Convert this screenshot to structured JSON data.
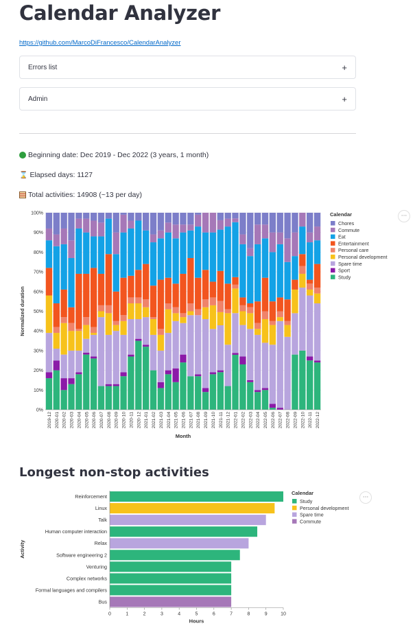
{
  "title": "Calendar Analyzer",
  "repo_link": "https://github.com/MarcoDiFrancesco/CalendarAnalyzer",
  "expanders": [
    {
      "label": "Errors list",
      "icon": "plus-icon"
    },
    {
      "label": "Admin",
      "icon": "plus-icon"
    }
  ],
  "stats": {
    "beginning": "Beginning date: Dec 2019 - Dec 2022 (3 years, 1 month)",
    "elapsed": "Elapsed days: 1127",
    "total": "Total activities: 14908 (~13 per day)",
    "beginning_icon": "green-circle-icon",
    "elapsed_icon": "hourglass-icon",
    "total_icon": "abacus-icon"
  },
  "colors": {
    "Chores": "#7c7ec9",
    "Commute": "#a678b8",
    "Eat": "#13a2e6",
    "Entertainment": "#f2551f",
    "Personal care": "#f0836a",
    "Personal development": "#f7c21b",
    "Spare time": "#b8a5de",
    "Sport": "#8b1aa8",
    "Study": "#2db57c"
  },
  "chart_data": [
    {
      "type": "bar",
      "stacked": "normalized",
      "xlabel": "Month",
      "ylabel": "Normalized duration",
      "legend_title": "Calendar",
      "legend_position": "right",
      "y_ticks": [
        "0%",
        "10%",
        "20%",
        "30%",
        "40%",
        "50%",
        "60%",
        "70%",
        "80%",
        "90%",
        "100%"
      ],
      "categories": [
        "2019-12",
        "2020-01",
        "2020-02",
        "2020-03",
        "2020-04",
        "2020-05",
        "2020-06",
        "2020-07",
        "2020-08",
        "2020-09",
        "2020-10",
        "2020-11",
        "2020-12",
        "2021-01",
        "2021-02",
        "2021-03",
        "2021-04",
        "2021-05",
        "2021-06",
        "2021-07",
        "2021-08",
        "2021-09",
        "2021-10",
        "2021-11",
        "2021-12",
        "2022-01",
        "2022-02",
        "2022-03",
        "2022-04",
        "2022-05",
        "2022-06",
        "2022-07",
        "2022-08",
        "2022-09",
        "2022-10",
        "2022-11",
        "2022-12"
      ],
      "series_order": [
        "Study",
        "Sport",
        "Spare time",
        "Personal development",
        "Personal care",
        "Entertainment",
        "Eat",
        "Commute",
        "Chores"
      ],
      "legend": [
        "Chores",
        "Commute",
        "Eat",
        "Entertainment",
        "Personal care",
        "Personal development",
        "Spare time",
        "Sport",
        "Study"
      ],
      "series": [
        {
          "name": "Study",
          "values": [
            16,
            20,
            10,
            13,
            18,
            28,
            26,
            12,
            12,
            12,
            17,
            27,
            35,
            32,
            20,
            11,
            18,
            14,
            24,
            17,
            17,
            9,
            18,
            20,
            12,
            29,
            23,
            14,
            9,
            10,
            1,
            0,
            0,
            28,
            30,
            25,
            24
          ]
        },
        {
          "name": "Sport",
          "values": [
            3,
            5,
            6,
            3,
            1,
            1,
            1,
            0,
            1,
            1,
            2,
            1,
            1,
            1,
            0,
            3,
            2,
            7,
            4,
            0,
            1,
            2,
            1,
            1,
            0,
            1,
            4,
            1,
            1,
            1,
            2,
            1,
            0,
            0,
            0,
            2,
            1
          ]
        },
        {
          "name": "Spare time",
          "values": [
            20,
            6,
            12,
            14,
            11,
            7,
            11,
            35,
            25,
            27,
            19,
            18,
            10,
            14,
            18,
            16,
            19,
            24,
            16,
            31,
            30,
            35,
            22,
            24,
            21,
            21,
            16,
            26,
            28,
            23,
            30,
            44,
            37,
            21,
            32,
            31,
            29
          ]
        },
        {
          "name": "Personal development",
          "values": [
            19,
            8,
            16,
            10,
            10,
            7,
            1,
            3,
            11,
            3,
            7,
            8,
            8,
            5,
            8,
            8,
            12,
            4,
            3,
            2,
            0,
            6,
            12,
            7,
            16,
            13,
            7,
            8,
            3,
            12,
            10,
            2,
            6,
            12,
            7,
            3,
            5
          ]
        },
        {
          "name": "Personal care",
          "values": [
            0,
            3,
            3,
            4,
            1,
            4,
            3,
            3,
            4,
            2,
            3,
            3,
            3,
            4,
            1,
            3,
            3,
            3,
            2,
            4,
            3,
            4,
            4,
            6,
            2,
            2,
            3,
            3,
            3,
            4,
            2,
            3,
            2,
            0,
            4,
            3,
            3
          ]
        },
        {
          "name": "Entertainment",
          "values": [
            14,
            12,
            14,
            8,
            28,
            22,
            30,
            16,
            26,
            15,
            19,
            11,
            14,
            18,
            16,
            25,
            13,
            12,
            20,
            23,
            16,
            15,
            8,
            16,
            13,
            4,
            4,
            2,
            11,
            17,
            10,
            7,
            11,
            5,
            6,
            2,
            12
          ]
        },
        {
          "name": "Eat",
          "values": [
            14,
            29,
            23,
            25,
            23,
            21,
            16,
            19,
            18,
            19,
            23,
            24,
            25,
            17,
            22,
            21,
            23,
            23,
            21,
            14,
            26,
            19,
            25,
            22,
            29,
            29,
            27,
            24,
            29,
            20,
            25,
            27,
            19,
            12,
            14,
            19,
            12
          ]
        },
        {
          "name": "Commute",
          "values": [
            6,
            6,
            8,
            9,
            5,
            7,
            8,
            7,
            0,
            11,
            9,
            4,
            0,
            0,
            4,
            4,
            5,
            7,
            4,
            3,
            6,
            10,
            10,
            5,
            4,
            2,
            5,
            4,
            10,
            7,
            10,
            6,
            12,
            12,
            7,
            5,
            7
          ]
        },
        {
          "name": "Chores",
          "values": [
            8,
            11,
            8,
            14,
            3,
            3,
            4,
            5,
            3,
            10,
            1,
            4,
            4,
            9,
            11,
            9,
            5,
            6,
            6,
            6,
            1,
            0,
            0,
            4,
            3,
            3,
            11,
            18,
            6,
            6,
            10,
            10,
            13,
            10,
            0,
            10,
            7
          ]
        }
      ]
    },
    {
      "type": "bar",
      "orientation": "horizontal",
      "title": "Longest non-stop activities",
      "xlabel": "Hours",
      "ylabel": "Activity",
      "legend_title": "Calendar",
      "legend_position": "right",
      "xlim": [
        0,
        10
      ],
      "x_ticks": [
        "0",
        "1",
        "2",
        "3",
        "4",
        "5",
        "6",
        "7",
        "8",
        "9",
        "10"
      ],
      "legend": [
        "Study",
        "Personal development",
        "Spare time",
        "Commute"
      ],
      "categories": [
        "Reinforcement",
        "Linux",
        "Talk",
        "Human computer interaction",
        "Relax",
        "Software engineering 2",
        "Venturing",
        "Complex networks",
        "Formal languages and compilers",
        "Bus"
      ],
      "values": [
        10.0,
        9.5,
        9.0,
        8.5,
        8.0,
        7.5,
        7.0,
        7.0,
        7.0,
        7.0
      ],
      "series_of_category": [
        "Study",
        "Personal development",
        "Spare time",
        "Study",
        "Spare time",
        "Study",
        "Study",
        "Study",
        "Study",
        "Commute"
      ]
    }
  ],
  "section_title": "Longest non-stop activities"
}
